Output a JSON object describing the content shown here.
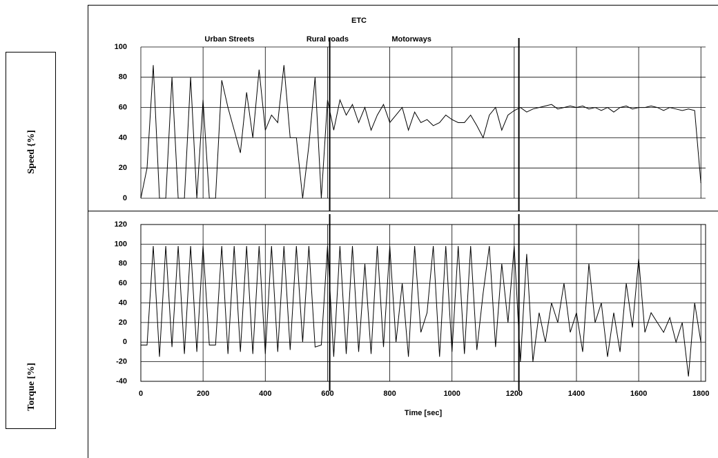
{
  "chart_data": [
    {
      "type": "line",
      "title": "ETC",
      "ylabel": "Speed {%]",
      "sections": [
        {
          "label": "Urban Streets",
          "x": 285
        },
        {
          "label": "Rural roads",
          "x": 600
        },
        {
          "label": "Motorways",
          "x": 870
        }
      ],
      "dividers": [
        607,
        1215
      ],
      "xlim": [
        0,
        1815
      ],
      "ylim": [
        0,
        100
      ],
      "yticks": [
        0,
        20,
        40,
        60,
        80,
        100
      ],
      "xticks": [
        0,
        200,
        400,
        600,
        800,
        1000,
        1200,
        1400,
        1600,
        1800
      ],
      "grid": true,
      "x": [
        0,
        20,
        40,
        60,
        80,
        100,
        120,
        140,
        160,
        180,
        200,
        220,
        240,
        260,
        280,
        300,
        320,
        340,
        360,
        380,
        400,
        420,
        440,
        460,
        480,
        500,
        520,
        540,
        560,
        580,
        600,
        620,
        640,
        660,
        680,
        700,
        720,
        740,
        760,
        780,
        800,
        820,
        840,
        860,
        880,
        900,
        920,
        940,
        960,
        980,
        1000,
        1020,
        1040,
        1060,
        1080,
        1100,
        1120,
        1140,
        1160,
        1180,
        1200,
        1220,
        1240,
        1260,
        1280,
        1300,
        1320,
        1340,
        1360,
        1380,
        1400,
        1420,
        1440,
        1460,
        1480,
        1500,
        1520,
        1540,
        1560,
        1580,
        1600,
        1620,
        1640,
        1660,
        1680,
        1700,
        1720,
        1740,
        1760,
        1780,
        1800
      ],
      "series": [
        {
          "name": "Speed",
          "color": "#000000",
          "values": [
            0,
            20,
            88,
            0,
            0,
            80,
            0,
            0,
            80,
            0,
            65,
            0,
            0,
            78,
            60,
            45,
            30,
            70,
            40,
            85,
            45,
            55,
            50,
            88,
            40,
            40,
            0,
            35,
            80,
            0,
            65,
            45,
            65,
            55,
            62,
            50,
            60,
            45,
            55,
            62,
            50,
            55,
            60,
            45,
            57,
            50,
            52,
            48,
            50,
            55,
            52,
            50,
            50,
            55,
            48,
            40,
            55,
            60,
            45,
            55,
            58,
            60,
            57,
            59,
            60,
            61,
            62,
            59,
            60,
            61,
            60,
            61,
            59,
            60,
            58,
            60,
            57,
            60,
            61,
            59,
            60,
            60,
            61,
            60,
            58,
            60,
            59,
            58,
            59,
            58,
            10
          ]
        }
      ]
    },
    {
      "type": "line",
      "ylabel": "Torque [%]",
      "xlabel": "Time [sec]",
      "dividers": [
        607,
        1215
      ],
      "xlim": [
        0,
        1815
      ],
      "ylim": [
        -40,
        120
      ],
      "yticks": [
        -40,
        -20,
        0,
        20,
        40,
        60,
        80,
        100,
        120
      ],
      "xticks": [
        0,
        200,
        400,
        600,
        800,
        1000,
        1200,
        1400,
        1600,
        1800
      ],
      "grid": true,
      "x": [
        0,
        20,
        40,
        60,
        80,
        100,
        120,
        140,
        160,
        180,
        200,
        220,
        240,
        260,
        280,
        300,
        320,
        340,
        360,
        380,
        400,
        420,
        440,
        460,
        480,
        500,
        520,
        540,
        560,
        580,
        600,
        620,
        640,
        660,
        680,
        700,
        720,
        740,
        760,
        780,
        800,
        820,
        840,
        860,
        880,
        900,
        920,
        940,
        960,
        980,
        1000,
        1020,
        1040,
        1060,
        1080,
        1100,
        1120,
        1140,
        1160,
        1180,
        1200,
        1220,
        1240,
        1260,
        1280,
        1300,
        1320,
        1340,
        1360,
        1380,
        1400,
        1420,
        1440,
        1460,
        1480,
        1500,
        1520,
        1540,
        1560,
        1580,
        1600,
        1620,
        1640,
        1660,
        1680,
        1700,
        1720,
        1740,
        1760,
        1780,
        1800
      ],
      "series": [
        {
          "name": "Torque",
          "color": "#000000",
          "values": [
            -3,
            -3,
            98,
            -15,
            98,
            -5,
            98,
            -12,
            98,
            -10,
            98,
            -3,
            -3,
            98,
            -12,
            98,
            -10,
            98,
            -12,
            98,
            -12,
            98,
            -10,
            98,
            -8,
            98,
            0,
            98,
            -5,
            -3,
            98,
            -15,
            98,
            -12,
            98,
            -10,
            80,
            -12,
            98,
            -5,
            98,
            0,
            60,
            -15,
            98,
            10,
            30,
            98,
            -15,
            98,
            -10,
            98,
            -12,
            98,
            -8,
            50,
            98,
            -5,
            80,
            20,
            98,
            -20,
            90,
            -20,
            30,
            0,
            40,
            20,
            60,
            10,
            30,
            -10,
            80,
            20,
            40,
            -15,
            30,
            -10,
            60,
            15,
            85,
            10,
            30,
            20,
            10,
            25,
            0,
            20,
            -35,
            40,
            0
          ]
        }
      ]
    }
  ]
}
